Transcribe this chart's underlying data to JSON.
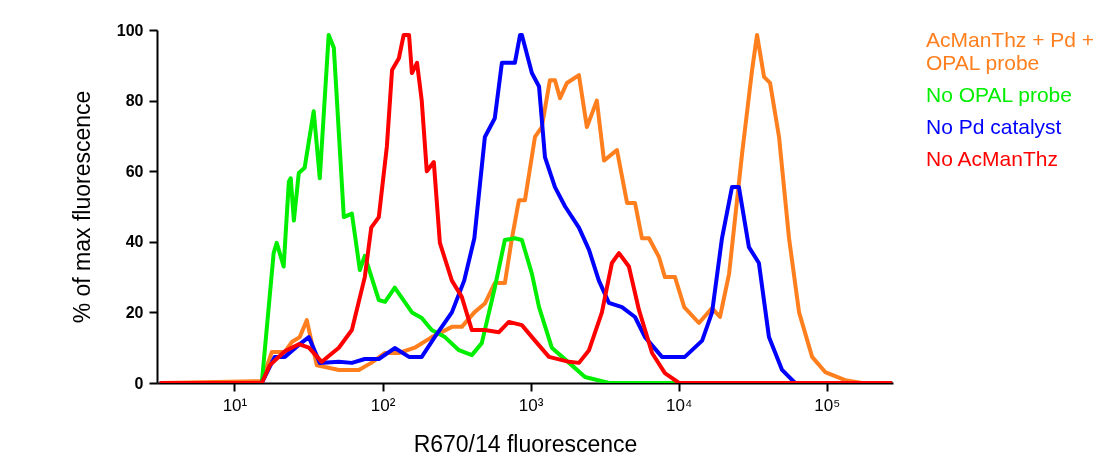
{
  "chart_data": {
    "type": "line",
    "xlabel": "R670/14 fluorescence",
    "ylabel": "% of max fluorescence",
    "log": "x",
    "grid": false,
    "legend": "right",
    "marker": "none",
    "line_style": "solid",
    "xlim": [
      3,
      280000
    ],
    "xticks": [
      {
        "value": 10,
        "label": "10¹"
      },
      {
        "value": 100,
        "label": "10²"
      },
      {
        "value": 1000,
        "label": "10³"
      },
      {
        "value": 10000,
        "label": "10⁴"
      },
      {
        "value": 100000,
        "label": "10⁵"
      }
    ],
    "ylim": [
      0,
      100
    ],
    "yticks": [
      0,
      20,
      40,
      60,
      80,
      100
    ],
    "series": [
      {
        "name": "AcManThz + Pd + OPAL probe",
        "color": "#ff7f1e",
        "x": [
          3.2,
          15.3,
          17.9,
          21.9,
          24.4,
          27.6,
          30.8,
          36,
          43.3,
          50.7,
          69.2,
          83.9,
          104,
          129,
          165,
          215,
          294,
          343,
          417,
          491,
          573,
          670,
          748,
          834,
          916,
          1070,
          1190,
          1350,
          1460,
          1580,
          1760,
          2120,
          2400,
          2800,
          3130,
          3830,
          4480,
          5070,
          5650,
          6300,
          7360,
          8070,
          9440,
          10900,
          13700,
          16800,
          19000,
          21900,
          26800,
          31300,
          33800,
          37700,
          41400,
          47600,
          55600,
          65000,
          79600,
          97500,
          133000,
          173000,
          270000
        ],
        "values": [
          0,
          0.5,
          8.8,
          8.8,
          11.6,
          13,
          17.8,
          5,
          4.3,
          3.7,
          3.7,
          5.7,
          8.5,
          8.5,
          10,
          13,
          15.9,
          15.9,
          20,
          22.5,
          28.3,
          28.3,
          41,
          51.8,
          51.8,
          69.7,
          72.5,
          85.8,
          85.8,
          80.7,
          85,
          87.2,
          72.5,
          80,
          63,
          66,
          51,
          51,
          41,
          41,
          35.7,
          30,
          30,
          21.5,
          17,
          21.2,
          18.7,
          31,
          65,
          88.7,
          98.6,
          86.7,
          85,
          69.7,
          41,
          20,
          7.4,
          3.1,
          0.8,
          0,
          0
        ]
      },
      {
        "name": "No OPAL probe",
        "color": "#00ee00",
        "x": [
          3.2,
          15.3,
          18.4,
          19.3,
          21.5,
          23.3,
          24,
          25.2,
          27.2,
          29.8,
          34.3,
          37.7,
          43.3,
          46.9,
          54.8,
          62.1,
          70.3,
          75.9,
          94.4,
          104,
          121,
          158,
          184,
          215,
          264,
          328,
          401,
          468,
          573,
          670,
          783,
          873,
          1020,
          1140,
          1390,
          1820,
          2330,
          3380,
          270000
        ],
        "values": [
          0,
          0,
          36.8,
          39.7,
          33,
          57,
          58,
          46,
          59.5,
          61,
          77,
          58,
          98.6,
          95,
          47,
          48,
          32,
          36,
          23.5,
          23,
          27,
          20,
          18.4,
          15,
          13,
          9.3,
          7.9,
          11.3,
          27,
          40.5,
          41,
          40.5,
          31,
          21.5,
          10,
          5.7,
          1.7,
          0,
          0
        ]
      },
      {
        "name": "No Pd catalyst",
        "color": "#0000ff",
        "x": [
          3.2,
          15.3,
          18.7,
          21.9,
          27.2,
          31.8,
          37.7,
          50.7,
          62.1,
          75.9,
          94.4,
          121,
          151,
          184,
          225,
          294,
          356,
          417,
          491,
          573,
          640,
          783,
          849,
          873,
          1020,
          1140,
          1250,
          1460,
          1710,
          2120,
          2480,
          2890,
          3380,
          4140,
          5070,
          5920,
          7710,
          11000,
          14400,
          16800,
          19600,
          22900,
          25500,
          29800,
          34800,
          40700,
          49900,
          61100,
          270000
        ],
        "values": [
          0,
          0,
          7.4,
          7.4,
          10.8,
          13,
          5.7,
          6,
          5.7,
          6.8,
          6.8,
          9.9,
          7.4,
          7.4,
          13,
          20,
          29,
          41,
          69.7,
          75,
          90.7,
          90.7,
          98.6,
          98.6,
          87.8,
          84,
          64,
          55.5,
          50,
          44,
          37.7,
          29,
          22.7,
          21.5,
          18.7,
          13,
          7.4,
          7.4,
          12,
          20,
          41,
          55.5,
          55.5,
          38.5,
          34,
          13,
          3.7,
          0,
          0
        ]
      },
      {
        "name": "No AcManThz",
        "color": "#ff0000",
        "x": [
          3.2,
          15.3,
          17.3,
          21.9,
          27.2,
          31.8,
          38.9,
          50.7,
          62.1,
          75.9,
          83.9,
          94.4,
          107,
          116,
          129,
          139,
          151,
          158,
          171,
          184,
          199,
          222,
          244,
          294,
          343,
          401,
          491,
          611,
          713,
          873,
          1070,
          1330,
          1820,
          2120,
          2480,
          3030,
          3540,
          3950,
          4610,
          5390,
          6610,
          8070,
          10050,
          270000
        ],
        "values": [
          0,
          0,
          5,
          9,
          11,
          10,
          6,
          10,
          15,
          30,
          44,
          47,
          67,
          88.7,
          92,
          98.6,
          98.6,
          87.8,
          90.7,
          80,
          60,
          62.6,
          39.7,
          29,
          24.4,
          15,
          15,
          14.4,
          17.3,
          16.4,
          12,
          7.4,
          6,
          5.7,
          9.3,
          20,
          34,
          36.8,
          33,
          20.7,
          8.5,
          2.8,
          0,
          0
        ]
      }
    ]
  }
}
